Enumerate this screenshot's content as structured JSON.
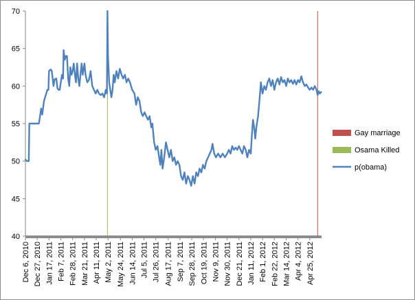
{
  "chart_data": {
    "type": "line",
    "title": "",
    "xlabel": "",
    "ylabel": "",
    "ylim": [
      40,
      70
    ],
    "yticks": [
      40,
      45,
      50,
      55,
      60,
      65,
      70
    ],
    "grid": false,
    "legend_placement": "right",
    "xlim_dates": [
      "2010-12-06",
      "2012-05-16"
    ],
    "x_tick_labels": [
      {
        "date": "2010-12-06",
        "label": "Dec 6, 2010"
      },
      {
        "date": "2010-12-27",
        "label": "Dec 27, 2010"
      },
      {
        "date": "2011-01-17",
        "label": "Jan 17, 2011"
      },
      {
        "date": "2011-02-07",
        "label": "Feb 7, 2011"
      },
      {
        "date": "2011-02-28",
        "label": "Feb 28, 2011"
      },
      {
        "date": "2011-03-21",
        "label": "Mar 21, 2011"
      },
      {
        "date": "2011-04-11",
        "label": "Apr 11, 2011"
      },
      {
        "date": "2011-05-02",
        "label": "May 2, 2011"
      },
      {
        "date": "2011-05-24",
        "label": "May 24, 2011"
      },
      {
        "date": "2011-06-14",
        "label": "Jun 14, 2011"
      },
      {
        "date": "2011-07-05",
        "label": "Jul 5, 2011"
      },
      {
        "date": "2011-07-26",
        "label": "Jul 26, 2011"
      },
      {
        "date": "2011-08-17",
        "label": "Aug 17, 2011"
      },
      {
        "date": "2011-09-07",
        "label": "Sep 7, 2011"
      },
      {
        "date": "2011-09-28",
        "label": "Sep 28, 2011"
      },
      {
        "date": "2011-10-19",
        "label": "Oct 19, 2011"
      },
      {
        "date": "2011-11-09",
        "label": "Nov 9, 2011"
      },
      {
        "date": "2011-11-30",
        "label": "Nov 30, 2011"
      },
      {
        "date": "2011-12-21",
        "label": "Dec 21, 2011"
      },
      {
        "date": "2012-01-11",
        "label": "Jan 11, 2012"
      },
      {
        "date": "2012-02-01",
        "label": "Feb 1, 2012"
      },
      {
        "date": "2012-02-22",
        "label": "Feb 22, 2012"
      },
      {
        "date": "2012-03-14",
        "label": "Mar 14, 2012"
      },
      {
        "date": "2012-04-04",
        "label": "Apr 4, 2012"
      },
      {
        "date": "2012-04-25",
        "label": "Apr 25, 2012"
      }
    ],
    "series": [
      {
        "name": "Gay marriage",
        "kind": "event-line",
        "color": "#c0504d",
        "date": "2012-05-09"
      },
      {
        "name": "Osama Killed",
        "kind": "event-line",
        "color": "#9bbb59",
        "date": "2011-05-01"
      },
      {
        "name": "p(obama)",
        "kind": "line",
        "color": "#4f81bd",
        "points": [
          [
            "2010-12-06",
            50.2
          ],
          [
            "2010-12-09",
            50.0
          ],
          [
            "2010-12-12",
            50.0
          ],
          [
            "2010-12-13",
            55.0
          ],
          [
            "2010-12-20",
            55.0
          ],
          [
            "2010-12-27",
            55.0
          ],
          [
            "2010-12-30",
            55.0
          ],
          [
            "2011-01-01",
            56.0
          ],
          [
            "2011-01-03",
            57.0
          ],
          [
            "2011-01-05",
            56.2
          ],
          [
            "2011-01-08",
            58.0
          ],
          [
            "2011-01-10",
            58.5
          ],
          [
            "2011-01-12",
            59.0
          ],
          [
            "2011-01-14",
            59.5
          ],
          [
            "2011-01-16",
            59.5
          ],
          [
            "2011-01-17",
            62.0
          ],
          [
            "2011-01-20",
            62.2
          ],
          [
            "2011-01-22",
            62.0
          ],
          [
            "2011-01-25",
            60.0
          ],
          [
            "2011-01-27",
            60.9
          ],
          [
            "2011-01-30",
            61.0
          ],
          [
            "2011-02-01",
            59.7
          ],
          [
            "2011-02-03",
            59.5
          ],
          [
            "2011-02-05",
            59.5
          ],
          [
            "2011-02-07",
            60.5
          ],
          [
            "2011-02-09",
            61.5
          ],
          [
            "2011-02-11",
            61.0
          ],
          [
            "2011-02-12",
            64.8
          ],
          [
            "2011-02-14",
            63.5
          ],
          [
            "2011-02-16",
            64.0
          ],
          [
            "2011-02-18",
            64.0
          ],
          [
            "2011-02-20",
            61.0
          ],
          [
            "2011-02-22",
            60.0
          ],
          [
            "2011-02-24",
            62.5
          ],
          [
            "2011-02-26",
            61.5
          ],
          [
            "2011-02-28",
            62.0
          ],
          [
            "2011-03-02",
            63.0
          ],
          [
            "2011-03-04",
            61.5
          ],
          [
            "2011-03-06",
            60.5
          ],
          [
            "2011-03-08",
            63.0
          ],
          [
            "2011-03-10",
            61.0
          ],
          [
            "2011-03-12",
            60.0
          ],
          [
            "2011-03-14",
            61.5
          ],
          [
            "2011-03-16",
            63.0
          ],
          [
            "2011-03-18",
            61.5
          ],
          [
            "2011-03-21",
            63.0
          ],
          [
            "2011-03-23",
            61.5
          ],
          [
            "2011-03-26",
            60.5
          ],
          [
            "2011-03-29",
            60.8
          ],
          [
            "2011-04-01",
            62.0
          ],
          [
            "2011-04-04",
            60.0
          ],
          [
            "2011-04-07",
            59.5
          ],
          [
            "2011-04-10",
            59.0
          ],
          [
            "2011-04-13",
            59.5
          ],
          [
            "2011-04-16",
            59.0
          ],
          [
            "2011-04-19",
            58.8
          ],
          [
            "2011-04-22",
            59.0
          ],
          [
            "2011-04-25",
            58.5
          ],
          [
            "2011-04-28",
            59.5
          ],
          [
            "2011-04-30",
            59.0
          ],
          [
            "2011-05-01",
            70.0
          ],
          [
            "2011-05-02",
            64.0
          ],
          [
            "2011-05-04",
            60.5
          ],
          [
            "2011-05-06",
            59.5
          ],
          [
            "2011-05-08",
            58.5
          ],
          [
            "2011-05-10",
            59.5
          ],
          [
            "2011-05-12",
            61.5
          ],
          [
            "2011-05-14",
            60.5
          ],
          [
            "2011-05-17",
            62.0
          ],
          [
            "2011-05-20",
            61.0
          ],
          [
            "2011-05-23",
            62.3
          ],
          [
            "2011-05-26",
            61.5
          ],
          [
            "2011-05-29",
            61.0
          ],
          [
            "2011-06-01",
            61.5
          ],
          [
            "2011-06-04",
            60.5
          ],
          [
            "2011-06-07",
            61.0
          ],
          [
            "2011-06-10",
            60.5
          ],
          [
            "2011-06-14",
            59.5
          ],
          [
            "2011-06-18",
            59.0
          ],
          [
            "2011-06-21",
            57.5
          ],
          [
            "2011-06-24",
            58.5
          ],
          [
            "2011-06-27",
            58.0
          ],
          [
            "2011-06-30",
            56.5
          ],
          [
            "2011-07-03",
            56.0
          ],
          [
            "2011-07-06",
            56.5
          ],
          [
            "2011-07-09",
            56.0
          ],
          [
            "2011-07-12",
            55.5
          ],
          [
            "2011-07-15",
            56.0
          ],
          [
            "2011-07-18",
            54.5
          ],
          [
            "2011-07-20",
            55.0
          ],
          [
            "2011-07-23",
            52.5
          ],
          [
            "2011-07-26",
            51.5
          ],
          [
            "2011-07-29",
            52.0
          ],
          [
            "2011-08-01",
            50.5
          ],
          [
            "2011-08-03",
            49.5
          ],
          [
            "2011-08-05",
            51.5
          ],
          [
            "2011-08-07",
            49.0
          ],
          [
            "2011-08-10",
            50.5
          ],
          [
            "2011-08-13",
            52.5
          ],
          [
            "2011-08-16",
            51.5
          ],
          [
            "2011-08-19",
            50.5
          ],
          [
            "2011-08-22",
            51.5
          ],
          [
            "2011-08-25",
            50.0
          ],
          [
            "2011-08-28",
            50.5
          ],
          [
            "2011-08-31",
            49.5
          ],
          [
            "2011-09-03",
            50.0
          ],
          [
            "2011-09-06",
            49.5
          ],
          [
            "2011-09-09",
            48.0
          ],
          [
            "2011-09-12",
            47.5
          ],
          [
            "2011-09-15",
            48.5
          ],
          [
            "2011-09-18",
            47.0
          ],
          [
            "2011-09-21",
            48.0
          ],
          [
            "2011-09-24",
            47.5
          ],
          [
            "2011-09-27",
            46.7
          ],
          [
            "2011-09-30",
            48.0
          ],
          [
            "2011-10-03",
            47.0
          ],
          [
            "2011-10-06",
            48.5
          ],
          [
            "2011-10-09",
            48.0
          ],
          [
            "2011-10-12",
            49.0
          ],
          [
            "2011-10-15",
            48.5
          ],
          [
            "2011-10-18",
            49.5
          ],
          [
            "2011-10-21",
            49.0
          ],
          [
            "2011-10-24",
            50.0
          ],
          [
            "2011-10-27",
            50.5
          ],
          [
            "2011-10-30",
            51.0
          ],
          [
            "2011-11-02",
            51.5
          ],
          [
            "2011-11-04",
            52.3
          ],
          [
            "2011-11-07",
            51.0
          ],
          [
            "2011-11-10",
            50.5
          ],
          [
            "2011-11-14",
            51.0
          ],
          [
            "2011-11-18",
            50.5
          ],
          [
            "2011-11-22",
            51.0
          ],
          [
            "2011-11-26",
            50.5
          ],
          [
            "2011-11-30",
            51.0
          ],
          [
            "2011-12-03",
            51.5
          ],
          [
            "2011-12-06",
            51.0
          ],
          [
            "2011-12-09",
            52.0
          ],
          [
            "2011-12-12",
            51.5
          ],
          [
            "2011-12-15",
            51.8
          ],
          [
            "2011-12-18",
            51.5
          ],
          [
            "2011-12-21",
            52.0
          ],
          [
            "2011-12-24",
            51.5
          ],
          [
            "2011-12-27",
            51.0
          ],
          [
            "2011-12-30",
            52.0
          ],
          [
            "2012-01-02",
            51.5
          ],
          [
            "2012-01-05",
            50.5
          ],
          [
            "2012-01-08",
            51.5
          ],
          [
            "2012-01-11",
            51.0
          ],
          [
            "2012-01-13",
            53.5
          ],
          [
            "2012-01-15",
            55.5
          ],
          [
            "2012-01-17",
            54.5
          ],
          [
            "2012-01-19",
            53.0
          ],
          [
            "2012-01-21",
            54.5
          ],
          [
            "2012-01-24",
            56.0
          ],
          [
            "2012-01-27",
            58.5
          ],
          [
            "2012-01-29",
            60.5
          ],
          [
            "2012-02-01",
            59.0
          ],
          [
            "2012-02-04",
            60.0
          ],
          [
            "2012-02-07",
            59.5
          ],
          [
            "2012-02-10",
            60.5
          ],
          [
            "2012-02-13",
            61.0
          ],
          [
            "2012-02-16",
            60.0
          ],
          [
            "2012-02-19",
            60.8
          ],
          [
            "2012-02-22",
            59.5
          ],
          [
            "2012-02-25",
            60.5
          ],
          [
            "2012-02-28",
            61.0
          ],
          [
            "2012-03-02",
            60.2
          ],
          [
            "2012-03-05",
            61.2
          ],
          [
            "2012-03-08",
            60.5
          ],
          [
            "2012-03-11",
            60.8
          ],
          [
            "2012-03-14",
            60.0
          ],
          [
            "2012-03-17",
            61.0
          ],
          [
            "2012-03-20",
            60.5
          ],
          [
            "2012-03-23",
            60.8
          ],
          [
            "2012-03-26",
            60.3
          ],
          [
            "2012-03-29",
            60.8
          ],
          [
            "2012-04-01",
            60.2
          ],
          [
            "2012-04-04",
            60.8
          ],
          [
            "2012-04-07",
            60.5
          ],
          [
            "2012-04-10",
            61.3
          ],
          [
            "2012-04-13",
            60.5
          ],
          [
            "2012-04-16",
            60.0
          ],
          [
            "2012-04-19",
            60.2
          ],
          [
            "2012-04-22",
            59.8
          ],
          [
            "2012-04-25",
            59.5
          ],
          [
            "2012-04-28",
            59.8
          ],
          [
            "2012-05-01",
            59.5
          ],
          [
            "2012-05-04",
            60.0
          ],
          [
            "2012-05-07",
            59.5
          ],
          [
            "2012-05-09",
            58.8
          ],
          [
            "2012-05-11",
            59.3
          ],
          [
            "2012-05-13",
            59.0
          ],
          [
            "2012-05-15",
            59.2
          ]
        ]
      }
    ]
  }
}
